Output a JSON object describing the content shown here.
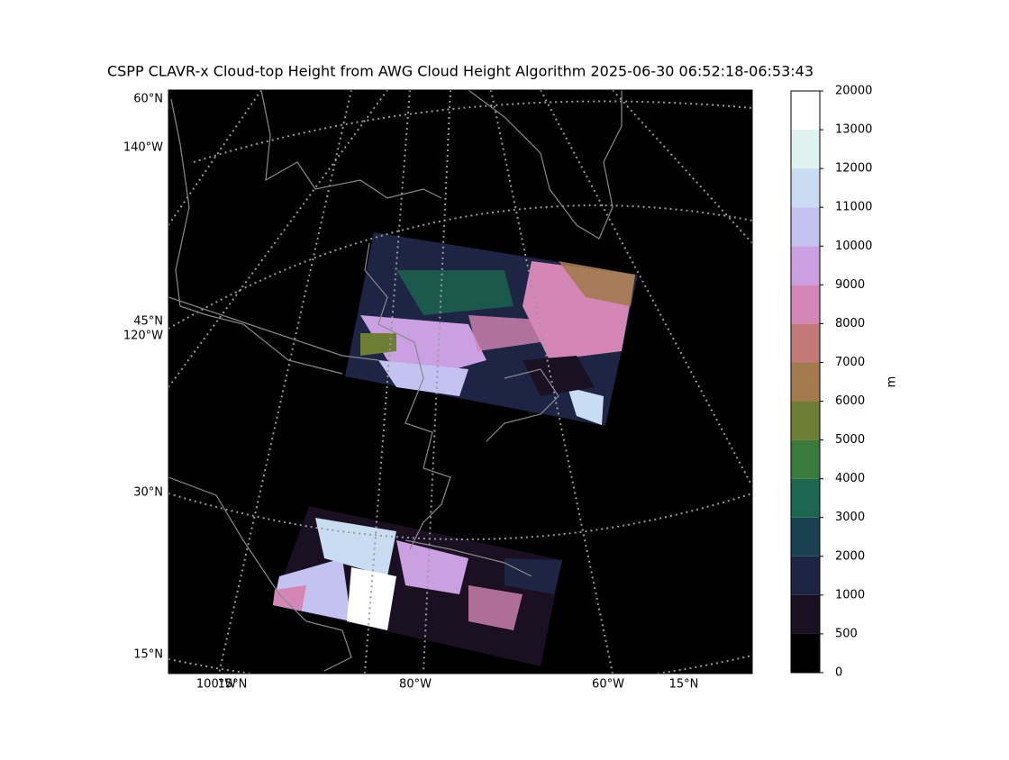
{
  "map": {
    "title": "CSPP CLAVR-x Cloud-top Height from AWG Cloud Height Algorithm 2025-06-30 06:52:18-06:53:43",
    "left_labels": [
      "60°N",
      "140°W",
      "45°N",
      "120°W",
      "30°N",
      "15°N"
    ],
    "bottom_labels": [
      "100°W",
      "15°N",
      "80°W",
      "60°W",
      "15°N"
    ]
  },
  "colorbar": {
    "label": "m",
    "ticks": [
      0,
      500,
      1000,
      2000,
      3000,
      4000,
      5000,
      6000,
      7000,
      8000,
      9000,
      10000,
      11000,
      12000,
      13000,
      20000
    ],
    "colors": [
      "#000000",
      "#1b0f22",
      "#1d2444",
      "#1a4150",
      "#1d6650",
      "#3a7a3a",
      "#6e7e35",
      "#a27a4c",
      "#c47878",
      "#d486b6",
      "#cba0e2",
      "#c4c2f0",
      "#c8ddf2",
      "#dff2ee",
      "#ffffff"
    ]
  }
}
